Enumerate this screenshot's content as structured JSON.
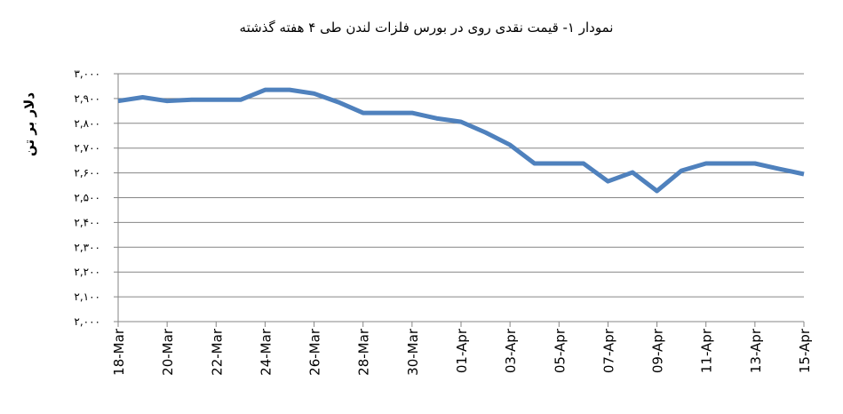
{
  "chart_data": {
    "type": "line",
    "title": "نمودار ۱- قیمت نقدی روی  در بورس فلزات لندن طی ۴ هفته گذشته",
    "y_label": "دلار بر تن",
    "categories": [
      "18-Mar",
      null,
      "20-Mar",
      null,
      "22-Mar",
      null,
      "24-Mar",
      null,
      "26-Mar",
      null,
      "28-Mar",
      null,
      "30-Mar",
      null,
      "01-Apr",
      null,
      "03-Apr",
      null,
      "05-Apr",
      null,
      "07-Apr",
      null,
      "09-Apr",
      null,
      "11-Apr",
      null,
      "13-Apr",
      null,
      "15-Apr"
    ],
    "series": [
      {
        "name": "قیمت نقدی روی",
        "color": "#4f81bd",
        "values": [
          2890,
          2905,
          2890,
          2895,
          2895,
          2895,
          2935,
          2935,
          2920,
          2885,
          2842,
          2842,
          2842,
          2820,
          2806,
          2763,
          2713,
          2638,
          2638,
          2638,
          2566,
          2602,
          2527,
          2609,
          2638,
          2638,
          2638,
          2616,
          2595
        ]
      }
    ],
    "ylim": [
      2000,
      3000
    ],
    "yticks": [
      {
        "value": 2000,
        "label": "۲,۰۰۰"
      },
      {
        "value": 2100,
        "label": "۲,۱۰۰"
      },
      {
        "value": 2200,
        "label": "۲,۲۰۰"
      },
      {
        "value": 2300,
        "label": "۲,۳۰۰"
      },
      {
        "value": 2400,
        "label": "۲,۴۰۰"
      },
      {
        "value": 2500,
        "label": "۲,۵۰۰"
      },
      {
        "value": 2600,
        "label": "۲,۶۰۰"
      },
      {
        "value": 2700,
        "label": "۲,۷۰۰"
      },
      {
        "value": 2800,
        "label": "۲,۸۰۰"
      },
      {
        "value": 2900,
        "label": "۲,۹۰۰"
      },
      {
        "value": 3000,
        "label": "۳,۰۰۰"
      }
    ],
    "grid": true
  }
}
